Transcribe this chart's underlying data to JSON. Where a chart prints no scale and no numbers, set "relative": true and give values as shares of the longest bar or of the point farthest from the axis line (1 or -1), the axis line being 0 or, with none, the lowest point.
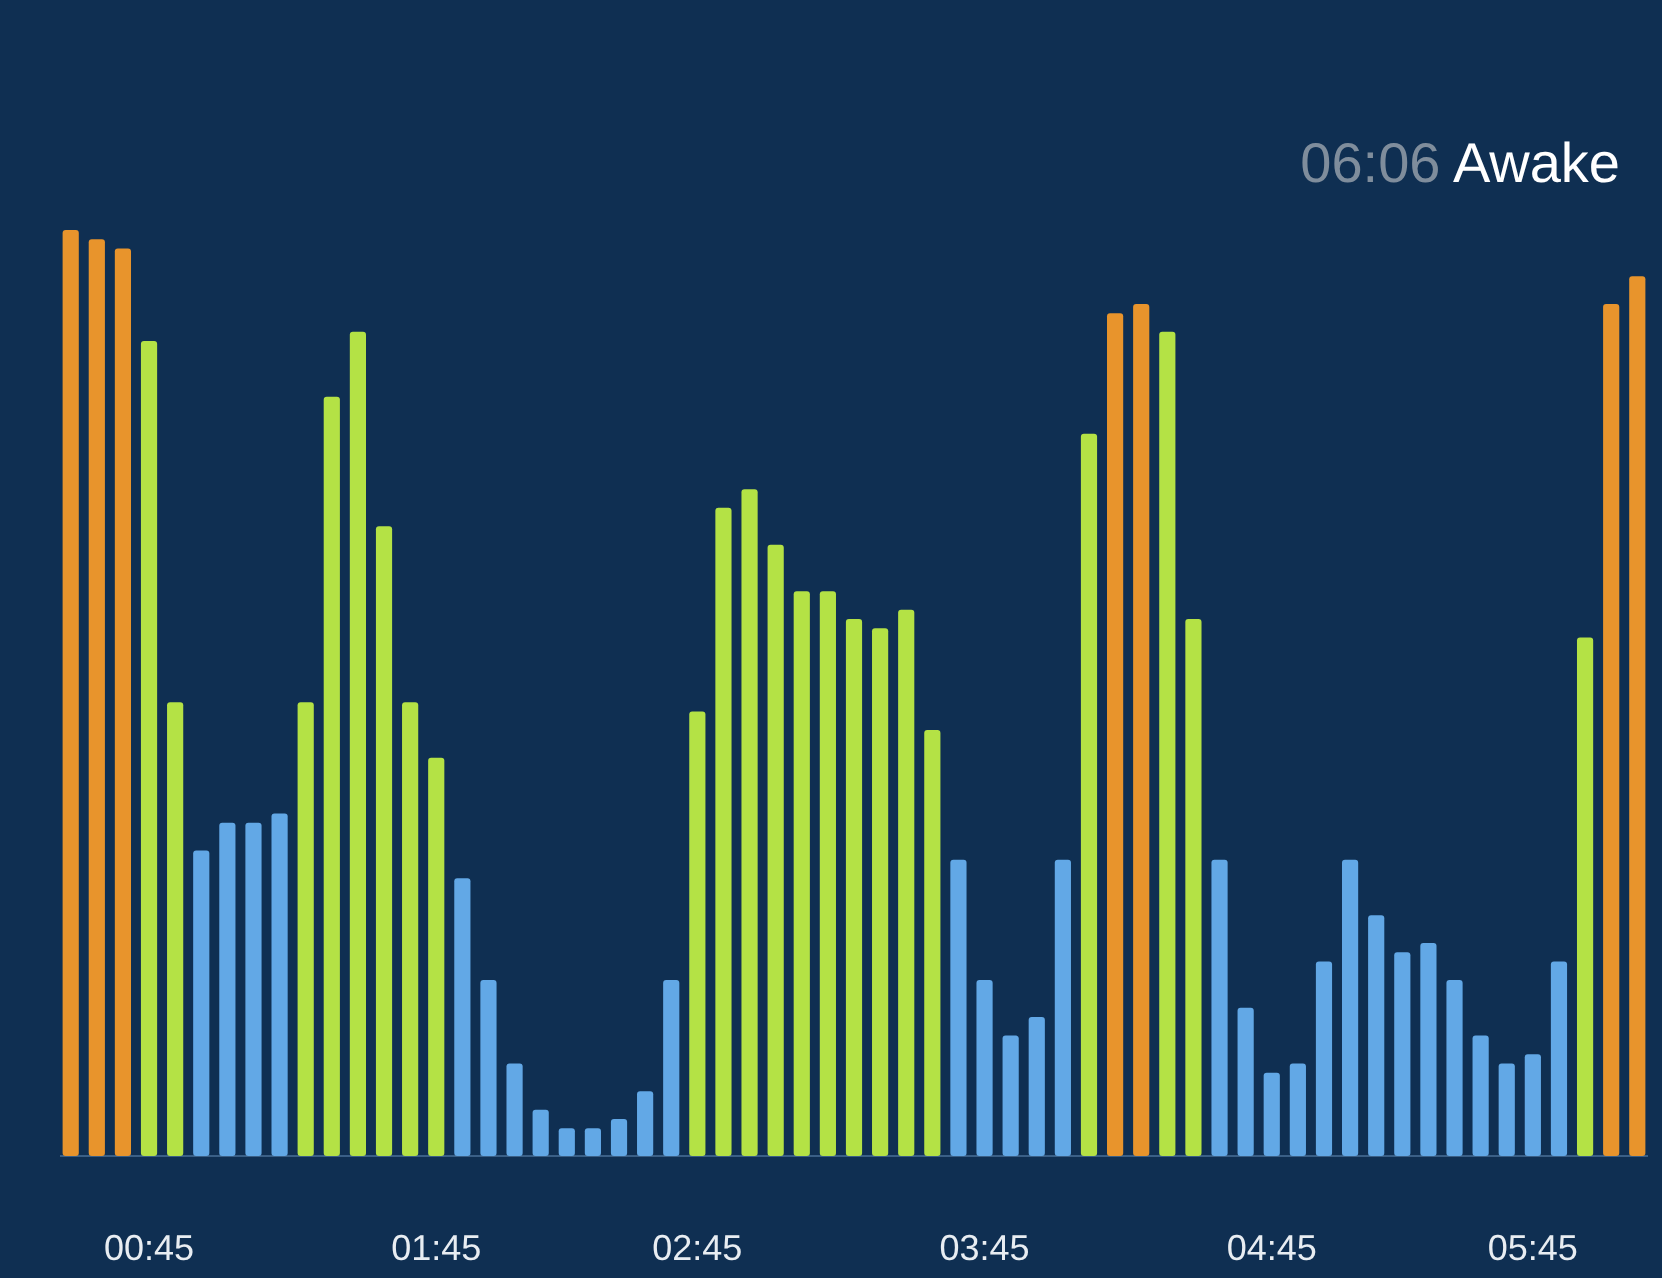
{
  "chart_data": {
    "type": "bar",
    "relative": true,
    "title": "Awake",
    "subtitle": "06:06",
    "categories": [
      null,
      null,
      null,
      "00:45",
      null,
      null,
      null,
      null,
      null,
      null,
      null,
      null,
      null,
      null,
      "01:45",
      null,
      null,
      null,
      null,
      null,
      null,
      null,
      null,
      null,
      "02:45",
      null,
      null,
      null,
      null,
      null,
      null,
      null,
      null,
      null,
      null,
      "03:45",
      null,
      null,
      null,
      null,
      null,
      null,
      null,
      null,
      null,
      null,
      "04:45",
      null,
      null,
      null,
      null,
      null,
      null,
      null,
      null,
      null,
      "05:45",
      null,
      null,
      null,
      null
    ],
    "values": [
      1.0,
      0.99,
      0.98,
      0.88,
      0.49,
      0.33,
      0.36,
      0.36,
      0.37,
      0.49,
      0.82,
      0.89,
      0.68,
      0.49,
      0.43,
      0.3,
      0.19,
      0.1,
      0.05,
      0.03,
      0.03,
      0.04,
      0.07,
      0.19,
      0.48,
      0.7,
      0.72,
      0.66,
      0.61,
      0.61,
      0.58,
      0.57,
      0.59,
      0.46,
      0.32,
      0.19,
      0.13,
      0.15,
      0.32,
      0.78,
      0.91,
      0.92,
      0.89,
      0.58,
      0.32,
      0.16,
      0.09,
      0.1,
      0.21,
      0.32,
      0.26,
      0.22,
      0.23,
      0.19,
      0.13,
      0.1,
      0.11,
      0.21,
      0.56,
      0.92,
      0.95
    ],
    "colors": [
      "#e8942c",
      "#e8942c",
      "#e8942c",
      "#b4e245",
      "#b4e245",
      "#62a8e6",
      "#62a8e6",
      "#62a8e6",
      "#62a8e6",
      "#b4e245",
      "#b4e245",
      "#b4e245",
      "#b4e245",
      "#b4e245",
      "#b4e245",
      "#62a8e6",
      "#62a8e6",
      "#62a8e6",
      "#62a8e6",
      "#62a8e6",
      "#62a8e6",
      "#62a8e6",
      "#62a8e6",
      "#62a8e6",
      "#b4e245",
      "#b4e245",
      "#b4e245",
      "#b4e245",
      "#b4e245",
      "#b4e245",
      "#b4e245",
      "#b4e245",
      "#b4e245",
      "#b4e245",
      "#62a8e6",
      "#62a8e6",
      "#62a8e6",
      "#62a8e6",
      "#62a8e6",
      "#b4e245",
      "#e8942c",
      "#e8942c",
      "#b4e245",
      "#b4e245",
      "#62a8e6",
      "#62a8e6",
      "#62a8e6",
      "#62a8e6",
      "#62a8e6",
      "#62a8e6",
      "#62a8e6",
      "#62a8e6",
      "#62a8e6",
      "#62a8e6",
      "#62a8e6",
      "#62a8e6",
      "#62a8e6",
      "#62a8e6",
      "#b4e245",
      "#e8942c",
      "#e8942c"
    ]
  }
}
